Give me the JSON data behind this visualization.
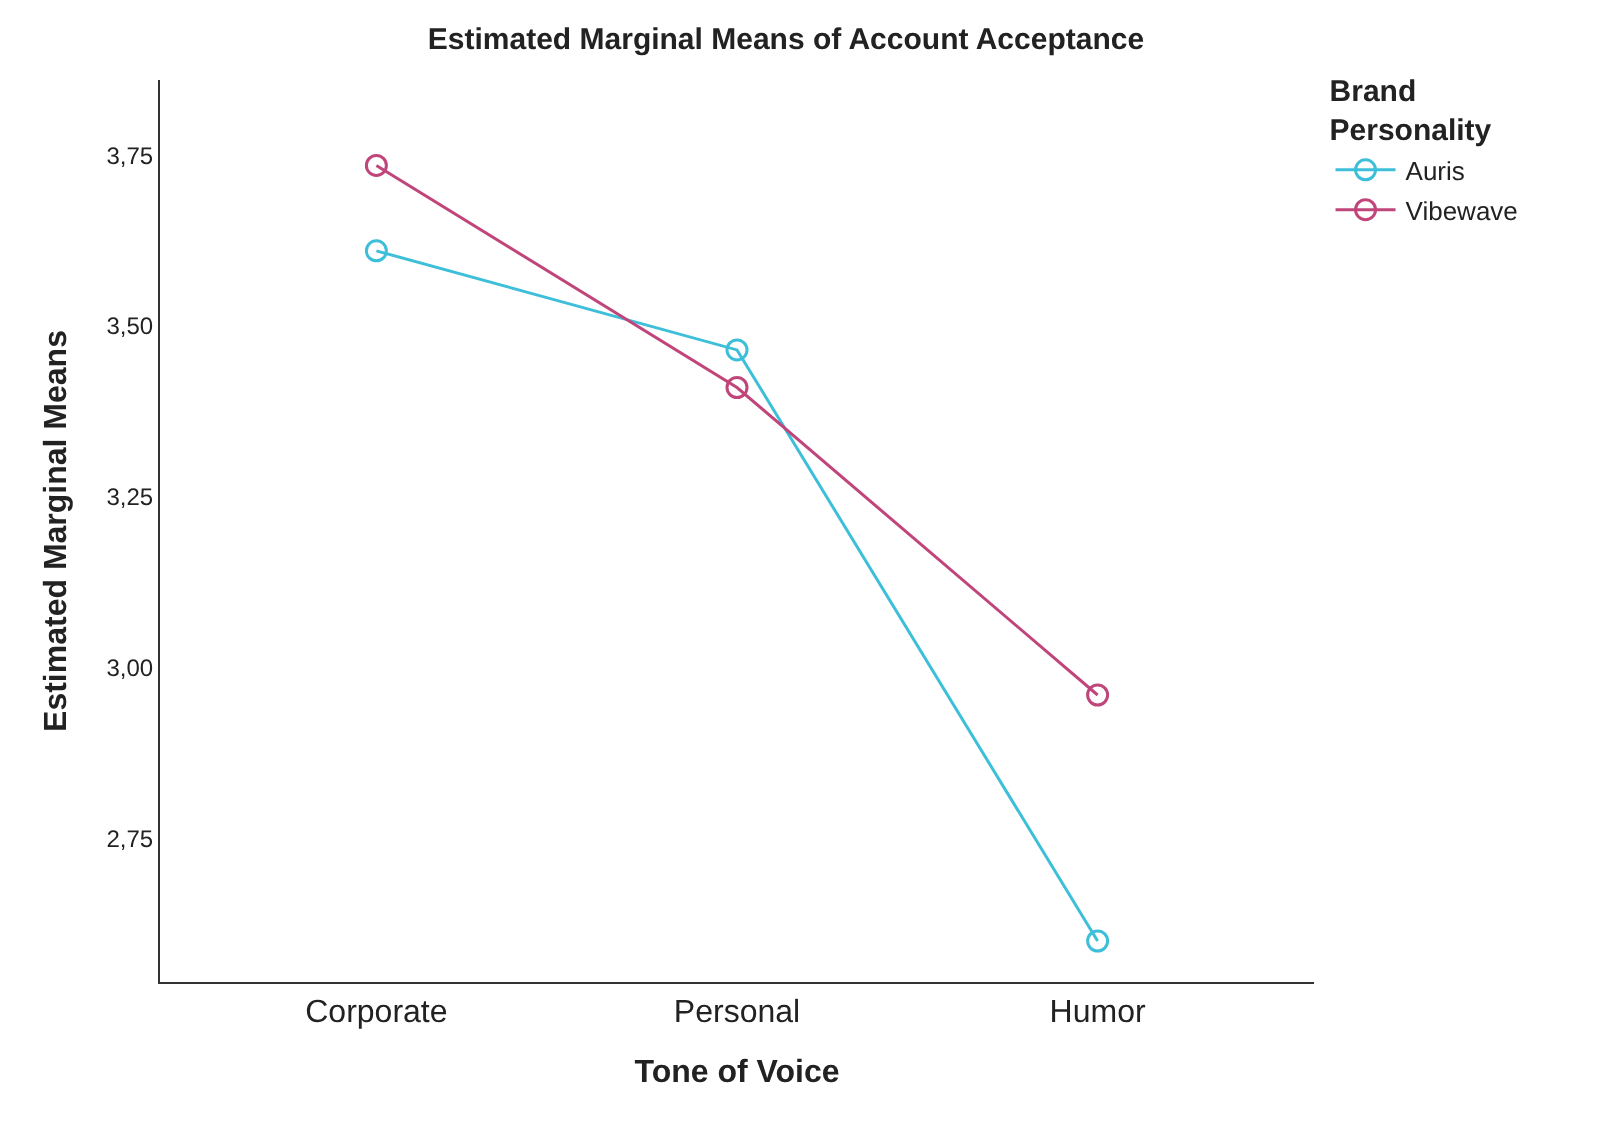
{
  "chart_data": {
    "type": "line",
    "title": "Estimated Marginal Means of Account Acceptance",
    "xlabel": "Tone of Voice",
    "ylabel": "Estimated Marginal Means",
    "legend_title": "Brand Personality",
    "categories": [
      "Corporate",
      "Personal",
      "Humor"
    ],
    "series": [
      {
        "name": "Auris",
        "color": "#3dbfd9",
        "values": [
          3.61,
          3.465,
          2.6
        ]
      },
      {
        "name": "Vibewave",
        "color": "#c0457a",
        "values": [
          3.735,
          3.41,
          2.96
        ]
      }
    ],
    "ylim": [
      2.54,
      3.86
    ],
    "yticks": [
      {
        "value": 2.75,
        "label": "2,75"
      },
      {
        "value": 3.0,
        "label": "3,00"
      },
      {
        "value": 3.25,
        "label": "3,25"
      },
      {
        "value": 3.5,
        "label": "3,50"
      },
      {
        "value": 3.75,
        "label": "3,75"
      }
    ],
    "legend": "top right",
    "marker": "circle",
    "line_style": "solid"
  }
}
